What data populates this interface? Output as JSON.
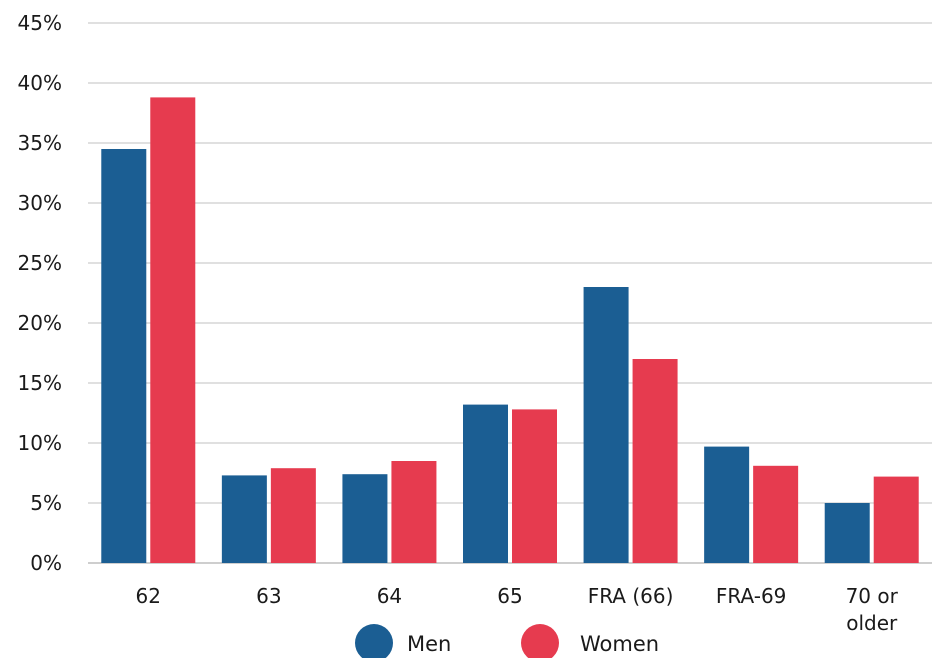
{
  "chart_data": {
    "type": "bar",
    "categories": [
      "62",
      "63",
      "64",
      "65",
      "FRA (66)",
      "FRA-69",
      "70 or older"
    ],
    "series": [
      {
        "name": "Men",
        "color": "#1b5e93",
        "values": [
          34.5,
          7.3,
          7.4,
          13.2,
          23.0,
          9.7,
          5.0
        ]
      },
      {
        "name": "Women",
        "color": "#e63b4f",
        "values": [
          38.8,
          7.9,
          8.5,
          12.8,
          17.0,
          8.1,
          7.2
        ]
      }
    ],
    "ylim": [
      0,
      45
    ],
    "yticks": [
      "0%",
      "5%",
      "10%",
      "15%",
      "20%",
      "25%",
      "30%",
      "35%",
      "40%",
      "45%"
    ],
    "grid": true,
    "legend": "bottom-center",
    "title": "",
    "xlabel": "",
    "ylabel": ""
  }
}
